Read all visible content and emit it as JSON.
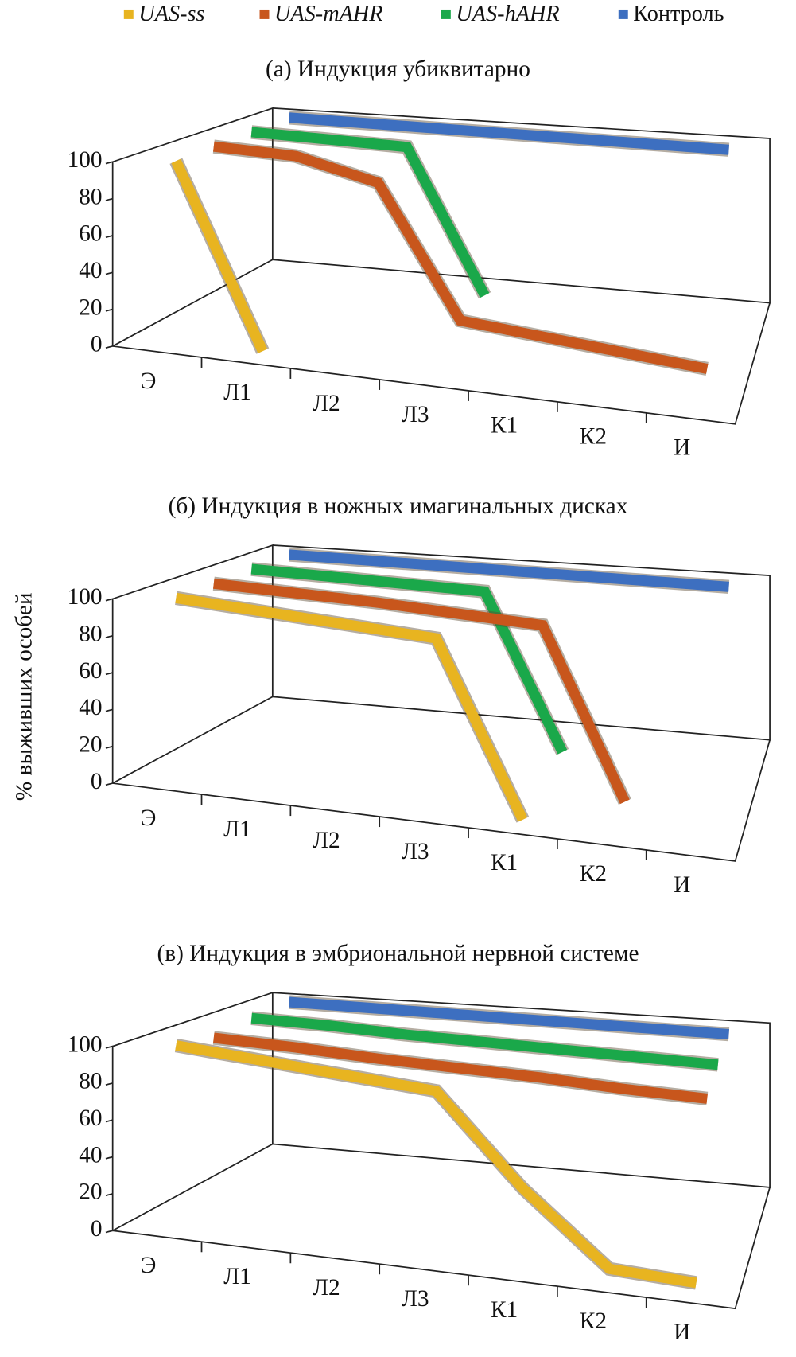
{
  "chart_data": [
    {
      "type": "line3d",
      "title": "(а) Индукция убиквитарно",
      "categories": [
        "Э",
        "Л1",
        "Л2",
        "Л3",
        "К1",
        "К2",
        "И"
      ],
      "ylim": [
        0,
        100
      ],
      "yticks": [
        0,
        20,
        40,
        60,
        80,
        100
      ],
      "series": [
        {
          "name": "UAS-ss",
          "color": "#e8b420",
          "values": [
            100,
            0,
            null,
            null,
            null,
            null,
            null
          ]
        },
        {
          "name": "UAS-mAHR",
          "color": "#c8561c",
          "values": [
            100,
            100,
            90,
            15,
            11,
            7,
            3
          ]
        },
        {
          "name": "UAS-hAHR",
          "color": "#1aa84a",
          "values": [
            100,
            100,
            100,
            15,
            null,
            null,
            null
          ]
        },
        {
          "name": "Контроль",
          "color": "#3d6fc0",
          "values": [
            100,
            100,
            100,
            100,
            100,
            100,
            100
          ]
        }
      ]
    },
    {
      "type": "line3d",
      "title": "(б) Индукция в ножных имагинальных дисках",
      "ylabel": "% выживших особей",
      "categories": [
        "Э",
        "Л1",
        "Л2",
        "Л3",
        "К1",
        "К2",
        "И"
      ],
      "ylim": [
        0,
        100
      ],
      "yticks": [
        0,
        20,
        40,
        60,
        80,
        100
      ],
      "series": [
        {
          "color": "#e8b420",
          "values": [
            100,
            99,
            98,
            97,
            0,
            null,
            null
          ]
        },
        {
          "color": "#c8561c",
          "values": [
            100,
            100,
            100,
            99,
            98,
            0,
            null
          ]
        },
        {
          "color": "#1aa84a",
          "values": [
            100,
            100,
            100,
            100,
            8,
            null,
            null
          ]
        },
        {
          "color": "#3d6fc0",
          "values": [
            100,
            100,
            100,
            100,
            100,
            100,
            100
          ]
        }
      ]
    },
    {
      "type": "line3d",
      "title": "(в) Индукция в эмбриональной нервной системе",
      "categories": [
        "Э",
        "Л1",
        "Л2",
        "Л3",
        "К1",
        "К2",
        "И"
      ],
      "ylim": [
        0,
        100
      ],
      "yticks": [
        0,
        20,
        40,
        60,
        80,
        100
      ],
      "series": [
        {
          "color": "#e8b420",
          "values": [
            100,
            98,
            96,
            94,
            45,
            5,
            3
          ]
        },
        {
          "color": "#c8561c",
          "values": [
            96,
            96,
            95,
            95,
            95,
            94,
            94
          ]
        },
        {
          "color": "#1aa84a",
          "values": [
            99,
            99,
            98,
            98,
            98,
            98,
            98
          ]
        },
        {
          "color": "#3d6fc0",
          "values": [
            100,
            100,
            100,
            100,
            100,
            100,
            100
          ]
        }
      ]
    }
  ]
}
